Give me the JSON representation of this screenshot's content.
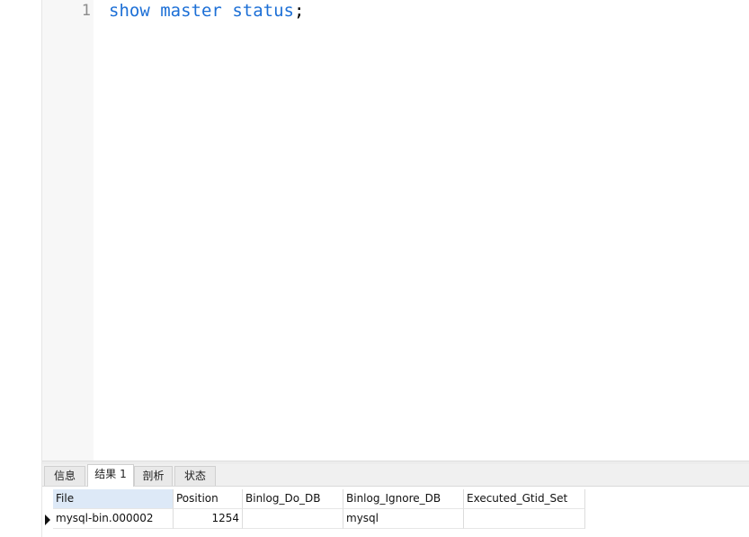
{
  "editor": {
    "line_number": "1",
    "code": {
      "kw1": "show",
      "kw2": "master",
      "kw3": "status",
      "semicolon": ";"
    }
  },
  "result_tabs": [
    {
      "label": "信息",
      "active": false
    },
    {
      "label": "结果 1",
      "active": true
    },
    {
      "label": "剖析",
      "active": false
    },
    {
      "label": "状态",
      "active": false
    }
  ],
  "grid": {
    "columns": [
      "File",
      "Position",
      "Binlog_Do_DB",
      "Binlog_Ignore_DB",
      "Executed_Gtid_Set"
    ],
    "rows": [
      {
        "File": "mysql-bin.000002",
        "Position": "1254",
        "Binlog_Do_DB": "",
        "Binlog_Ignore_DB": "mysql",
        "Executed_Gtid_Set": ""
      }
    ]
  },
  "colors": {
    "keyword": "#1c6fd6",
    "selected_header": "#dde9f7"
  }
}
